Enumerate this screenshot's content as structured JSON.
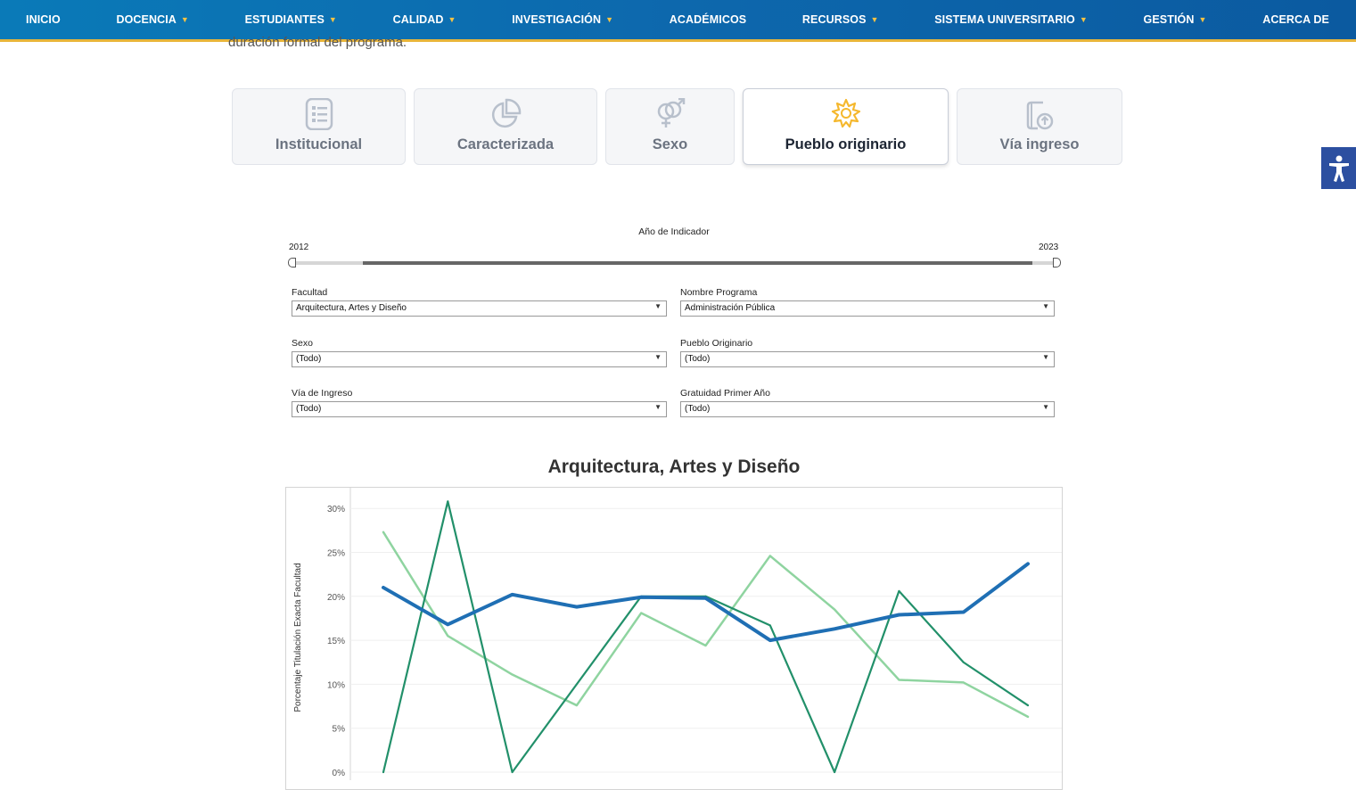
{
  "nav": {
    "items": [
      {
        "label": "INICIO",
        "dropdown": false
      },
      {
        "label": "DOCENCIA",
        "dropdown": true
      },
      {
        "label": "ESTUDIANTES",
        "dropdown": true
      },
      {
        "label": "CALIDAD",
        "dropdown": true
      },
      {
        "label": "INVESTIGACIÓN",
        "dropdown": true
      },
      {
        "label": "ACADÉMICOS",
        "dropdown": false
      },
      {
        "label": "RECURSOS",
        "dropdown": true
      },
      {
        "label": "SISTEMA UNIVERSITARIO",
        "dropdown": true
      },
      {
        "label": "GESTIÓN",
        "dropdown": true
      },
      {
        "label": "ACERCA DE",
        "dropdown": false
      }
    ],
    "caret_glyph": "⌄"
  },
  "intro_text": "duración formal del programa.",
  "tabs": [
    {
      "label": "Institucional",
      "icon": "list-icon",
      "active": false
    },
    {
      "label": "Caracterizada",
      "icon": "pie-chart-icon",
      "active": false
    },
    {
      "label": "Sexo",
      "icon": "gender-icon",
      "active": false
    },
    {
      "label": "Pueblo originario",
      "icon": "indigenous-star-icon",
      "active": true
    },
    {
      "label": "Vía ingreso",
      "icon": "document-upload-icon",
      "active": false
    }
  ],
  "slider": {
    "title": "Año de Indicador",
    "min_label": "2012",
    "max_label": "2023"
  },
  "filters": {
    "facultad": {
      "label": "Facultad",
      "value": "Arquitectura, Artes y Diseño"
    },
    "programa": {
      "label": "Nombre Programa",
      "value": "Administración Pública"
    },
    "sexo": {
      "label": "Sexo",
      "value": "(Todo)"
    },
    "pueblo": {
      "label": "Pueblo Originario",
      "value": "(Todo)"
    },
    "via": {
      "label": "Vía de Ingreso",
      "value": "(Todo)"
    },
    "gratuidad": {
      "label": "Gratuidad Primer Año",
      "value": "(Todo)"
    }
  },
  "colors": {
    "nav_bg": "#0b6aae",
    "nav_underline": "#e8b53a",
    "accent_star": "#f5b82e",
    "series_blue": "#1f6fb4",
    "series_dark_green": "#22906a",
    "series_light_green": "#8fd4a0",
    "access_btn": "#2c4fa0"
  },
  "chart_data": {
    "type": "line",
    "title": "Arquitectura, Artes y Diseño",
    "ylabel": "Porcentaje Titulación Exacta Facultad",
    "ylim": [
      0,
      0.32
    ],
    "yticks": [
      "0%",
      "5%",
      "10%",
      "15%",
      "20%",
      "25%",
      "30%"
    ],
    "ytick_values": [
      0,
      0.05,
      0.1,
      0.15,
      0.2,
      0.25,
      0.3
    ],
    "x_count": 11,
    "series": [
      {
        "values": [
          0.273,
          0.155,
          0.111,
          0.076,
          0.181,
          0.144,
          0.246,
          0.185,
          0.105,
          0.102,
          0.063
        ],
        "color": "#8fd4a0",
        "width": 2.5
      },
      {
        "values": [
          0.0,
          0.308,
          0.0,
          0.1,
          0.2,
          0.2,
          0.167,
          0.0,
          0.206,
          0.125,
          0.076
        ],
        "color": "#22906a",
        "width": 2.2
      },
      {
        "values": [
          0.21,
          0.168,
          0.202,
          0.188,
          0.199,
          0.198,
          0.15,
          0.163,
          0.179,
          0.182,
          0.237
        ],
        "color": "#1f6fb4",
        "width": 4
      }
    ]
  }
}
